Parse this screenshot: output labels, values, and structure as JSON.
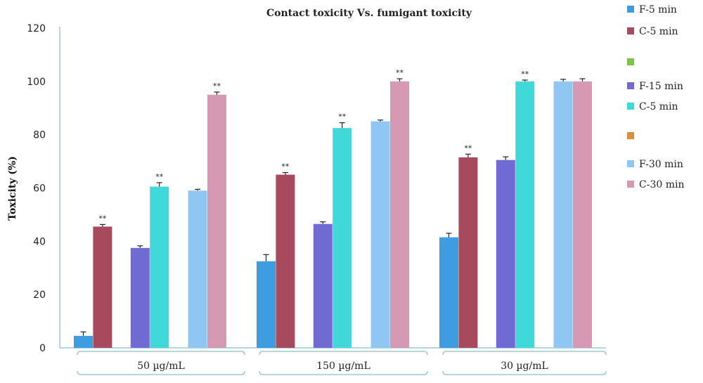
{
  "chart_data": {
    "type": "bar",
    "title": "Contact toxicity Vs. fumigant toxicity",
    "ylabel": "Toxicity (%)",
    "ylim": [
      0,
      120
    ],
    "yticks": [
      0,
      20,
      40,
      60,
      80,
      100,
      120
    ],
    "categories": [
      "50 µg/mL",
      "150 µg/mL",
      "30 µg/mL"
    ],
    "series": [
      {
        "name": "F-5 min",
        "color": "#3d9de0",
        "values": [
          4.5,
          32.5,
          41.5
        ],
        "errors": [
          1.5,
          2.5,
          1.5
        ],
        "sig": [
          "",
          "",
          ""
        ]
      },
      {
        "name": "C-5 min",
        "color": "#a84a5e",
        "values": [
          45.5,
          65,
          71.5
        ],
        "errors": [
          0.8,
          0.8,
          1.2
        ],
        "sig": [
          "**",
          "**",
          "**"
        ]
      },
      {
        "name": "F-15 min",
        "color": "#6f6bd2",
        "values": [
          37.5,
          46.5,
          70.5
        ],
        "errors": [
          0.8,
          0.8,
          1.2
        ],
        "sig": [
          "",
          "",
          ""
        ]
      },
      {
        "name": "C-5 min",
        "color": "#40d8d8",
        "values": [
          60.5,
          82.5,
          100
        ],
        "errors": [
          1.5,
          2.0,
          0.5
        ],
        "sig": [
          "**",
          "**",
          "**"
        ]
      },
      {
        "name": "F-30 min",
        "color": "#90c6f4",
        "values": [
          59,
          85,
          100
        ],
        "errors": [
          0.5,
          0.5,
          0.8
        ],
        "sig": [
          "",
          "",
          ""
        ]
      },
      {
        "name": "C-30 min",
        "color": "#d599b3",
        "values": [
          95,
          100,
          100
        ],
        "errors": [
          1.0,
          1.0,
          1.0
        ],
        "sig": [
          "**",
          "**",
          ""
        ]
      }
    ],
    "legend": {
      "position": "right",
      "entries": [
        {
          "label": "F-5 min",
          "color": "#3d9de0"
        },
        {
          "label": "C-5 min",
          "color": "#a84a5e"
        },
        {
          "label": "",
          "color": "#7fc44a"
        },
        {
          "label": "F-15 min",
          "color": "#6f6bd2"
        },
        {
          "label": "C-5 min",
          "color": "#40d8d8"
        },
        {
          "label": "",
          "color": "#e08a40"
        },
        {
          "label": "F-30 min",
          "color": "#90c6f4"
        },
        {
          "label": "C-30 min",
          "color": "#d599b3"
        }
      ]
    },
    "grid": false
  }
}
